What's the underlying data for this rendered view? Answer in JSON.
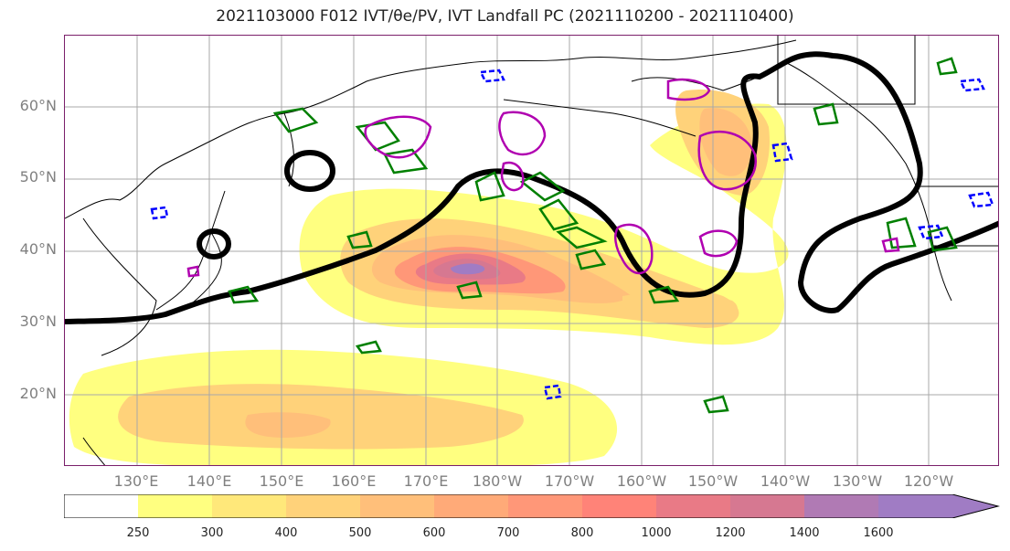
{
  "title": "2021103000 F012 IVT/θe/PV, IVT Landfall PC (2021110200 - 2021110400)",
  "lat_labels": [
    "60°N",
    "50°N",
    "40°N",
    "30°N",
    "20°N"
  ],
  "lon_labels": [
    "130°E",
    "140°E",
    "150°E",
    "160°E",
    "170°E",
    "180°W",
    "170°W",
    "160°W",
    "150°W",
    "140°W",
    "130°W",
    "120°W"
  ],
  "colorbar": {
    "ticks": [
      "250",
      "300",
      "400",
      "500",
      "600",
      "700",
      "800",
      "1000",
      "1200",
      "1400",
      "1600"
    ],
    "colors": [
      "#ffff80",
      "#ffe87a",
      "#ffd27a",
      "#ffbf7a",
      "#ffaa78",
      "#ff9778",
      "#ff8378",
      "#e97a86",
      "#d67891",
      "#b07ab4",
      "#a07cc4"
    ],
    "below_color": "#ffffff"
  },
  "legend_colors": {
    "ivt_landfall_pc": "#000000",
    "theta_e": "#008000",
    "pv_high": "#b000b0",
    "pv_low": "#0000ff"
  }
}
